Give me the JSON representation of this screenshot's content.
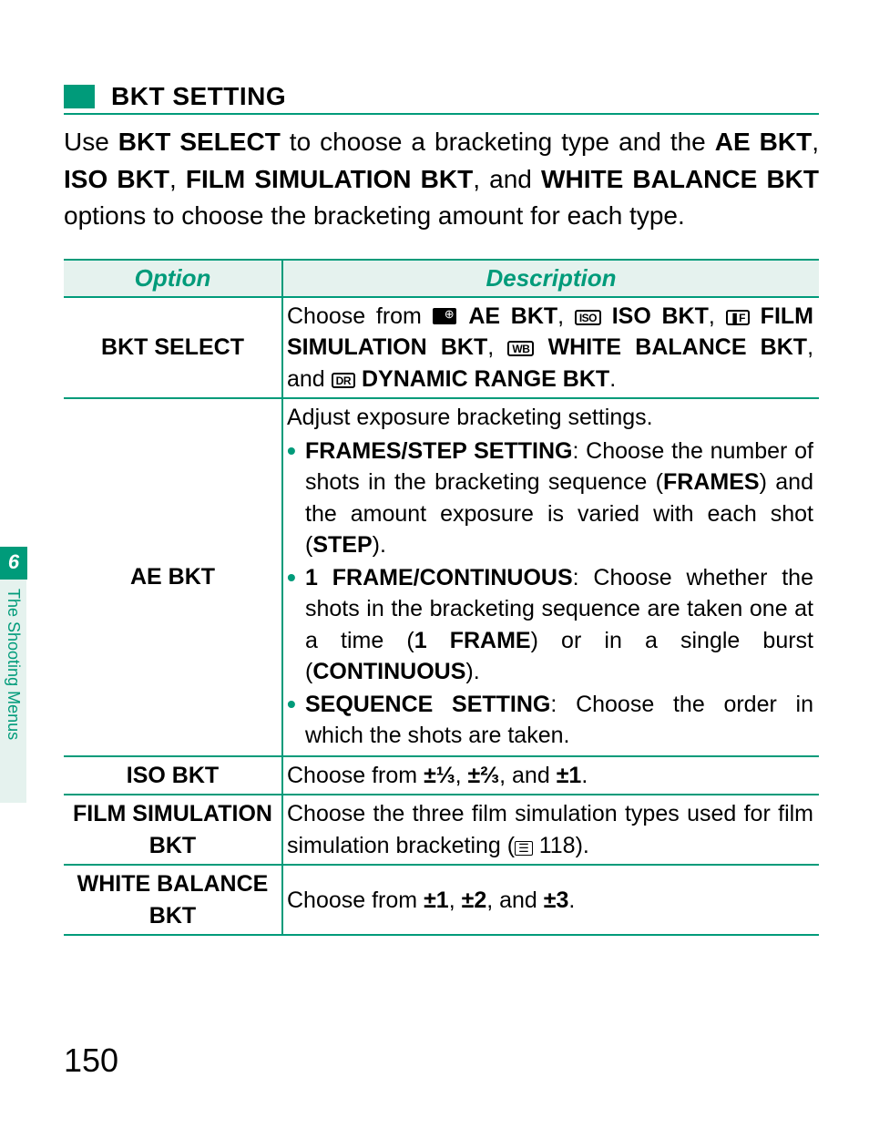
{
  "colors": {
    "accent": "#009b7a",
    "tint_bg": "#e5f2ee",
    "text": "#000000",
    "page_bg": "#ffffff"
  },
  "typography": {
    "body_pt": 28,
    "table_pt": 25,
    "header_pt": 26,
    "page_num_pt": 36,
    "family": "sans-serif"
  },
  "section_title": "BKT SETTING",
  "intro": {
    "p1a": "Use ",
    "b1": "BKT SELECT",
    "p1b": " to choose a bracketing type and the ",
    "b2": "AE BKT",
    "sep1": ", ",
    "b3": "ISO BKT",
    "sep2": ", ",
    "b4": "FILM SIMULATION BKT",
    "sep3": ", and ",
    "b5": "WHITE BALANCE BKT",
    "p1c": " options to choose the bracketing amount for each type."
  },
  "table": {
    "head_option": "Option",
    "head_desc": "Description",
    "rows": {
      "bkt_select": {
        "label": "BKT SELECT",
        "desc_pre": "Choose from ",
        "opt1": "AE BKT",
        "opt2": "ISO BKT",
        "opt3": "FILM SIMULATION BKT",
        "opt4": "WHITE BALANCE BKT",
        "opt5": "DYNAMIC RANGE BKT",
        "icon2": "ISO",
        "icon3": "❚F",
        "icon4": "WB",
        "icon5": "DR",
        "sep_comma": ", ",
        "sep_and": ", and ",
        "period": "."
      },
      "ae_bkt": {
        "label": "AE BKT",
        "intro": "Adjust exposure bracketing settings.",
        "b1_head": "FRAMES/STEP SETTING",
        "b1a": ": Choose the number of shots in the bracketing sequence (",
        "b1b": "FRAMES",
        "b1c": ") and the amount exposure is varied with each shot (",
        "b1d": "STEP",
        "b1e": ").",
        "b2_head": "1 FRAME/CONTINUOUS",
        "b2a": ": Choose whether the shots in the bracketing sequence are taken one at a time (",
        "b2b": "1 FRAME",
        "b2c": ") or in a single burst (",
        "b2d": "CONTINUOUS",
        "b2e": ").",
        "b3_head": "SEQUENCE SETTING",
        "b3a": ": Choose the order in which the shots are taken."
      },
      "iso_bkt": {
        "label": "ISO BKT",
        "desc_pre": "Choose from ",
        "v1": "±⅓",
        "v2": "±⅔",
        "v3": "±1",
        "sep_and": ", and ",
        "sep_comma": ", ",
        "period": "."
      },
      "film_bkt": {
        "label": "FILM SIMULATION BKT",
        "desc_a": "Choose the three film simulation types used for film simulation bracketing (",
        "page_ref": "118",
        "desc_b": ")."
      },
      "wb_bkt": {
        "label": "WHITE BALANCE BKT",
        "desc_pre": "Choose from ",
        "v1": "±1",
        "v2": "±2",
        "v3": "±3",
        "sep_and": ", and ",
        "sep_comma": ", ",
        "period": "."
      }
    }
  },
  "side_tab": {
    "number": "6",
    "label": "The Shooting Menus"
  },
  "page_number": "150"
}
